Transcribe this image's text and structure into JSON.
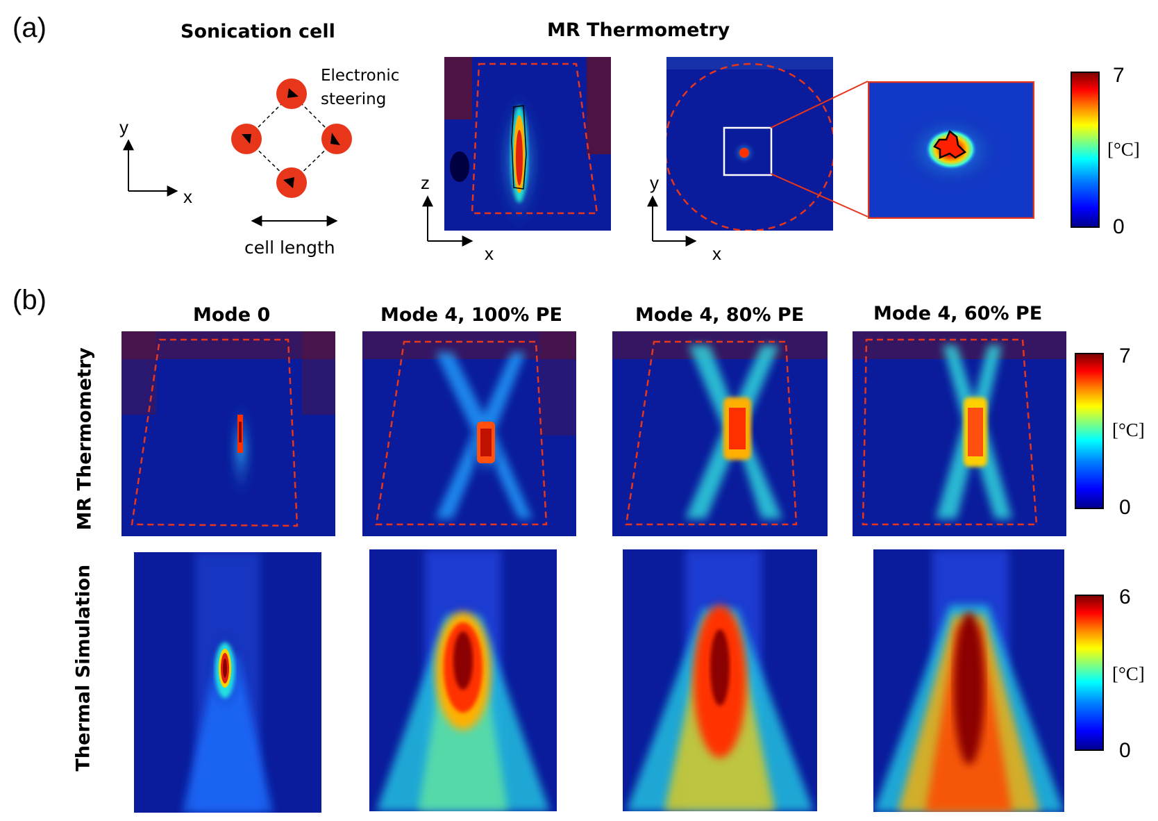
{
  "panel_a": {
    "label": "(a)",
    "sonication_title": "Sonication cell",
    "annotation": "Electronic\nsteering",
    "cell_length": "cell length",
    "axis_y": "y",
    "axis_x": "x",
    "mr_title": "MR Thermometry",
    "mr_axes_1": {
      "v": "z",
      "h": "x"
    },
    "mr_axes_2": {
      "v": "y",
      "h": "x"
    },
    "colorbar": {
      "max": "7",
      "min": "0",
      "unit": "[°C]"
    }
  },
  "panel_b": {
    "label": "(b)",
    "columns": [
      "Mode 0",
      "Mode 4, 100% PE",
      "Mode 4, 80% PE",
      "Mode 4, 60% PE"
    ],
    "rows": [
      "MR Thermometry",
      "Thermal Simulation"
    ],
    "colorbar_mr": {
      "max": "7",
      "min": "0",
      "unit": "[°C]"
    },
    "colorbar_sim": {
      "max": "6",
      "min": "0",
      "unit": "[°C]"
    }
  },
  "colors": {
    "accent": "#e8361b",
    "dark_blue": "#0a1c9c",
    "dashed": "#e8361b"
  }
}
